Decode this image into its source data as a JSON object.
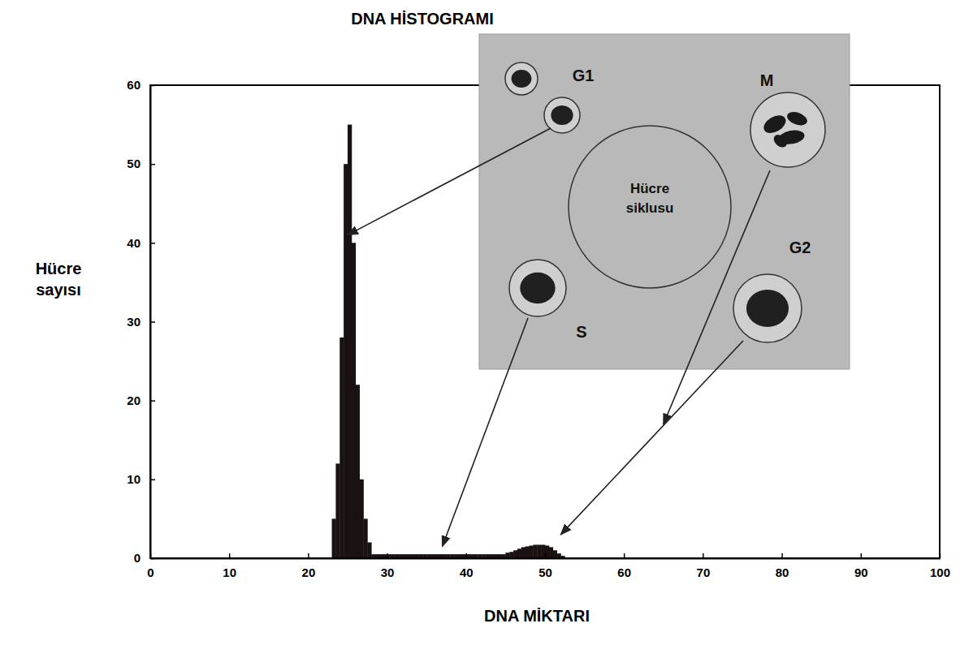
{
  "chart_data": {
    "type": "histogram",
    "title": "DNA HİSTOGRAMI",
    "x_label": "DNA MİKTARI",
    "y_label": "Hücre sayısı",
    "bins": [
      23,
      23.5,
      24,
      24.5,
      25,
      25.5,
      26,
      26.5,
      27,
      27.5,
      28,
      28.5,
      29,
      29.5,
      30,
      30.5,
      31,
      31.5,
      32,
      32.5,
      33,
      33.5,
      34,
      34.5,
      35,
      35.5,
      36,
      36.5,
      37,
      37.5,
      38,
      38.5,
      39,
      39.5,
      40,
      40.5,
      41,
      41.5,
      42,
      42.5,
      43,
      43.5,
      44,
      44.5,
      45,
      45.5,
      46,
      46.5,
      47,
      47.5,
      48,
      48.5,
      49,
      49.5,
      50,
      50.5,
      51,
      51.5,
      52,
      52.5,
      53
    ],
    "values": [
      5,
      12,
      28,
      50,
      55,
      40,
      22,
      10,
      5,
      2,
      0.5,
      0.5,
      0.5,
      0.5,
      0.5,
      0.5,
      0.5,
      0.5,
      0.5,
      0.5,
      0.5,
      0.5,
      0.5,
      0.5,
      0.5,
      0.5,
      0.5,
      0.5,
      0.5,
      0.5,
      0.5,
      0.5,
      0.5,
      0.5,
      0.5,
      0.5,
      0.5,
      0.5,
      0.5,
      0.5,
      0.5,
      0.5,
      0.5,
      0.5,
      0.7,
      0.8,
      1,
      1.2,
      1.4,
      1.5,
      1.6,
      1.7,
      1.7,
      1.7,
      1.6,
      1.4,
      1,
      0.6,
      0.3,
      0.1
    ],
    "color": "#1a1212",
    "xlim": [
      0,
      100
    ],
    "ylim": [
      0,
      60
    ],
    "xticks": [
      0,
      10,
      20,
      30,
      40,
      50,
      60,
      70,
      80,
      90,
      100
    ],
    "yticks": [
      0,
      10,
      20,
      30,
      40,
      50,
      60
    ],
    "grid": false,
    "inset_label": "Hücre siklusu",
    "annotations": [
      {
        "text": "G1",
        "x": 25,
        "y": 41
      },
      {
        "text": "M",
        "x": 65,
        "y": 17
      },
      {
        "text": "G2",
        "x": 52,
        "y": 3
      },
      {
        "text": "S",
        "x": 37,
        "y": 1.5
      }
    ]
  }
}
